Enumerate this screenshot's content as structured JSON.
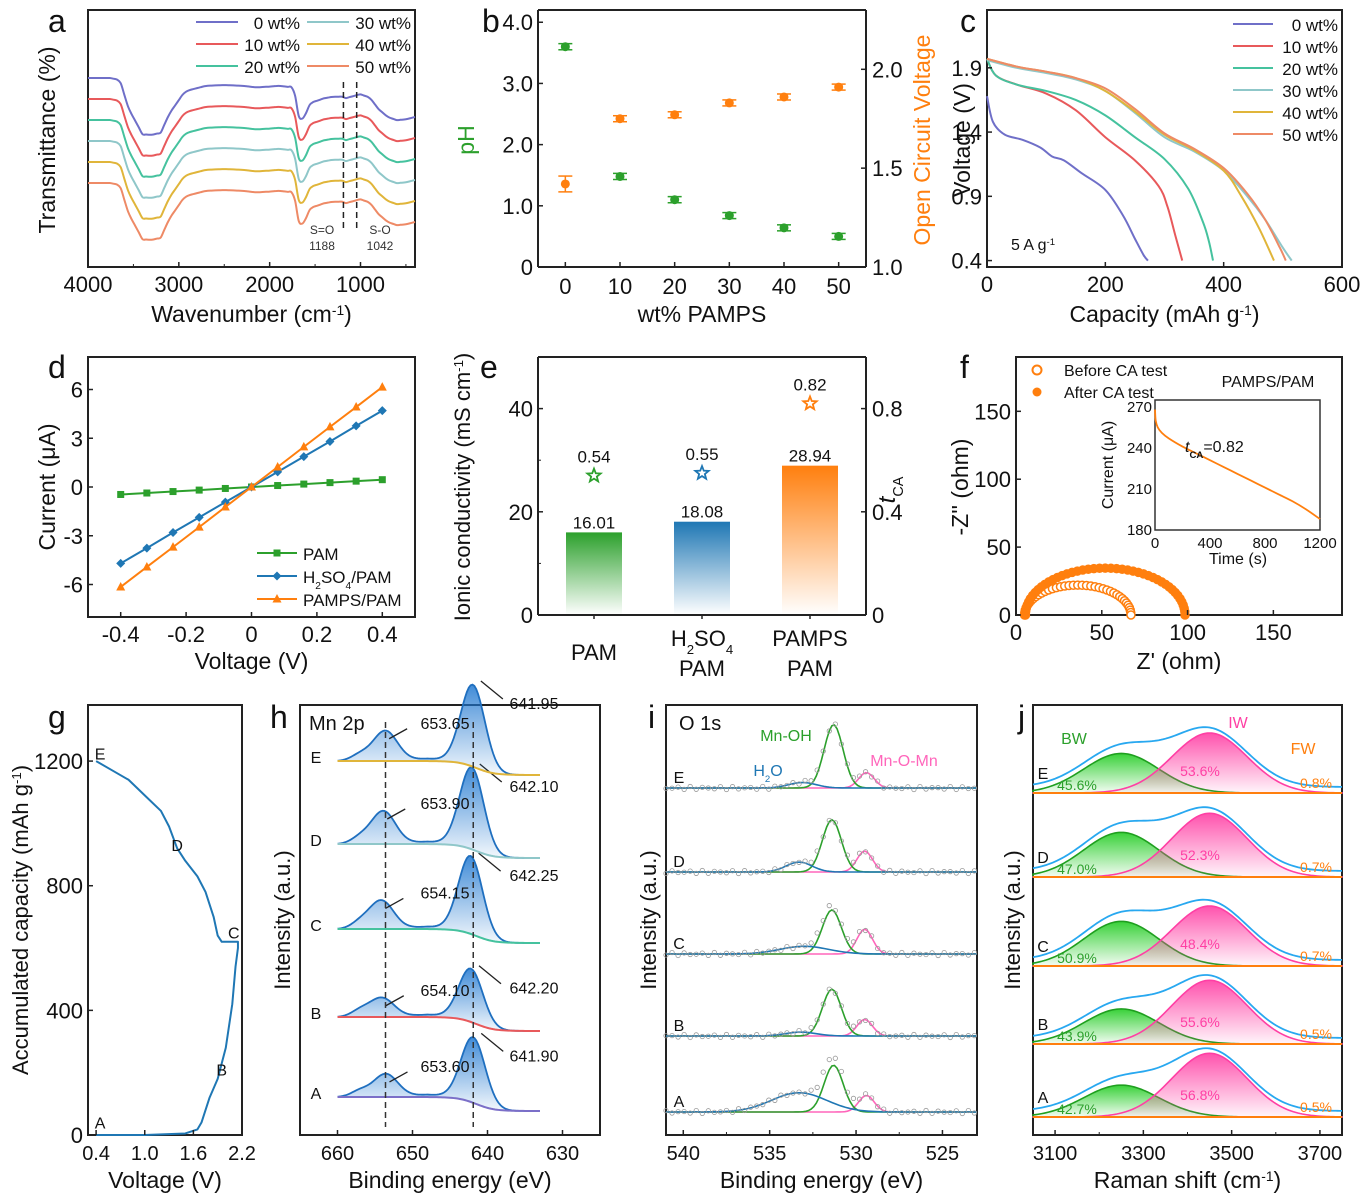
{
  "figure": {
    "panels": [
      "a",
      "b",
      "c",
      "d",
      "e",
      "f",
      "g",
      "h",
      "i",
      "j"
    ]
  },
  "chart_data": [
    {
      "id": "a",
      "type": "line",
      "title": "",
      "xlabel": "Wavenumber (cm-1)",
      "ylabel": "Transmittance (%)",
      "xlim": [
        4000,
        400
      ],
      "x_ticks": [
        4000,
        3000,
        2000,
        1000
      ],
      "y_ticks": [],
      "legend": {
        "position": "top-right",
        "columns": 2
      },
      "series": [
        {
          "name": "0 wt%",
          "color": "#6f6fc8",
          "offset": 0
        },
        {
          "name": "10 wt%",
          "color": "#e8595b",
          "offset": 1
        },
        {
          "name": "20 wt%",
          "color": "#45c29e",
          "offset": 2
        },
        {
          "name": "30 wt%",
          "color": "#8fc7c9",
          "offset": 3
        },
        {
          "name": "40 wt%",
          "color": "#e0b53a",
          "offset": 4
        },
        {
          "name": "50 wt%",
          "color": "#ee8a66",
          "offset": 5
        }
      ],
      "profile": {
        "x": [
          4000,
          3750,
          3650,
          3550,
          3400,
          3300,
          3200,
          3100,
          2950,
          2900,
          2700,
          2500,
          2300,
          2150,
          2000,
          1900,
          1750,
          1700,
          1670,
          1640,
          1600,
          1550,
          1450,
          1400,
          1300,
          1200,
          1188,
          1150,
          1100,
          1042,
          1000,
          900,
          800,
          700,
          600,
          500,
          400
        ],
        "y": [
          1.0,
          1.0,
          0.97,
          0.6,
          0.28,
          0.27,
          0.3,
          0.55,
          0.8,
          0.84,
          0.9,
          0.91,
          0.9,
          0.88,
          0.89,
          0.9,
          0.88,
          0.7,
          0.42,
          0.48,
          0.55,
          0.68,
          0.72,
          0.74,
          0.76,
          0.76,
          0.72,
          0.75,
          0.76,
          0.78,
          0.79,
          0.75,
          0.6,
          0.5,
          0.46,
          0.47,
          0.5
        ]
      },
      "annotations": [
        {
          "text": "S=O",
          "text2": "1188",
          "x": 1188
        },
        {
          "text": "S-O",
          "text2": "1042",
          "x": 1042
        }
      ]
    },
    {
      "id": "b",
      "type": "scatter",
      "xlabel": "wt% PAMPS",
      "ylabel": "pH",
      "y2label": "Open Circuit Voltage",
      "categories": [
        0,
        10,
        20,
        30,
        40,
        50
      ],
      "xlim": [
        -5,
        55
      ],
      "ylim": [
        0,
        4.2
      ],
      "y2lim": [
        1.0,
        2.3
      ],
      "y_ticks": [
        "0",
        "1.0",
        "2.0",
        "3.0",
        "4.0"
      ],
      "y2_ticks": [
        "1.0",
        "1.5",
        "2.0"
      ],
      "series": [
        {
          "name": "pH",
          "axis": "left",
          "color": "#2ca02c",
          "values": [
            3.6,
            1.48,
            1.1,
            0.84,
            0.64,
            0.5
          ],
          "errors": [
            0.05,
            0.05,
            0.05,
            0.04,
            0.04,
            0.04
          ]
        },
        {
          "name": "Open Circuit Voltage",
          "axis": "right",
          "color": "#ff7f0e",
          "values": [
            1.42,
            1.75,
            1.77,
            1.83,
            1.86,
            1.91
          ],
          "errors": [
            0.04,
            0.015,
            0.015,
            0.01,
            0.01,
            0.01
          ]
        }
      ]
    },
    {
      "id": "c",
      "type": "line",
      "xlabel": "Capacity (mAh g-1)",
      "ylabel": "Voltage (V)",
      "xlim": [
        0,
        600
      ],
      "ylim": [
        0.35,
        2.35
      ],
      "x_ticks": [
        0,
        200,
        400,
        600
      ],
      "y_ticks": [
        "0.4",
        "0.9",
        "1.4",
        "1.9"
      ],
      "annotation": "5 A g-1",
      "legend": {
        "position": "top-right"
      },
      "series": [
        {
          "name": "0 wt%",
          "color": "#6f6fc8",
          "x": [
            0,
            10,
            30,
            60,
            90,
            110,
            130,
            160,
            200,
            230,
            250,
            265,
            272
          ],
          "y": [
            1.68,
            1.48,
            1.38,
            1.34,
            1.28,
            1.21,
            1.18,
            1.08,
            0.95,
            0.75,
            0.57,
            0.44,
            0.4
          ]
        },
        {
          "name": "10 wt%",
          "color": "#e8595b",
          "x": [
            0,
            15,
            50,
            100,
            150,
            200,
            250,
            290,
            305,
            318,
            330
          ],
          "y": [
            1.97,
            1.84,
            1.77,
            1.7,
            1.57,
            1.36,
            1.18,
            0.98,
            0.82,
            0.6,
            0.4
          ]
        },
        {
          "name": "20 wt%",
          "color": "#45c29e",
          "x": [
            0,
            15,
            50,
            100,
            150,
            200,
            250,
            300,
            340,
            365,
            375,
            382
          ],
          "y": [
            1.97,
            1.84,
            1.77,
            1.72,
            1.65,
            1.53,
            1.36,
            1.19,
            0.96,
            0.7,
            0.55,
            0.4
          ]
        },
        {
          "name": "30 wt%",
          "color": "#8fc7c9",
          "x": [
            0,
            50,
            100,
            150,
            200,
            250,
            300,
            350,
            400,
            440,
            470,
            500,
            515
          ],
          "y": [
            1.96,
            1.9,
            1.86,
            1.81,
            1.72,
            1.55,
            1.36,
            1.25,
            1.1,
            0.9,
            0.72,
            0.5,
            0.4
          ]
        },
        {
          "name": "40 wt%",
          "color": "#e0b53a",
          "x": [
            0,
            50,
            100,
            150,
            200,
            250,
            300,
            350,
            400,
            430,
            460,
            485
          ],
          "y": [
            1.97,
            1.91,
            1.87,
            1.82,
            1.72,
            1.56,
            1.38,
            1.26,
            1.1,
            0.9,
            0.65,
            0.4
          ]
        },
        {
          "name": "50 wt%",
          "color": "#ee8a66",
          "x": [
            0,
            50,
            100,
            150,
            200,
            250,
            300,
            350,
            400,
            440,
            470,
            495,
            505
          ],
          "y": [
            1.97,
            1.91,
            1.87,
            1.82,
            1.74,
            1.58,
            1.39,
            1.27,
            1.12,
            0.92,
            0.72,
            0.5,
            0.4
          ]
        }
      ]
    },
    {
      "id": "d",
      "type": "line",
      "xlabel": "Voltage (V)",
      "ylabel": "Current (μA)",
      "xlim": [
        -0.5,
        0.5
      ],
      "ylim": [
        -8,
        8
      ],
      "x_ticks": [
        "-0.4",
        "-0.2",
        "0",
        "0.2",
        "0.4"
      ],
      "y_ticks": [
        "-6",
        "-3",
        "0",
        "3",
        "6"
      ],
      "legend": {
        "position": "bottom-right"
      },
      "x": [
        -0.4,
        -0.32,
        -0.24,
        -0.16,
        -0.08,
        0,
        0.08,
        0.16,
        0.24,
        0.32,
        0.4
      ],
      "series": [
        {
          "name": "PAM",
          "marker": "square",
          "color": "#2ca02c",
          "values": [
            -0.46,
            -0.37,
            -0.28,
            -0.19,
            -0.09,
            0,
            0.09,
            0.18,
            0.27,
            0.36,
            0.45
          ]
        },
        {
          "name": "H2SO4/PAM",
          "marker": "diamond",
          "color": "#1f77b4",
          "values": [
            -4.7,
            -3.76,
            -2.8,
            -1.87,
            -0.93,
            0,
            0.93,
            1.87,
            2.8,
            3.76,
            4.7
          ]
        },
        {
          "name": "PAMPS/PAM",
          "marker": "triangle",
          "color": "#ff7f0e",
          "values": [
            -6.15,
            -4.92,
            -3.7,
            -2.47,
            -1.23,
            0,
            1.23,
            2.47,
            3.7,
            4.92,
            6.15
          ]
        }
      ]
    },
    {
      "id": "e",
      "type": "bar",
      "xlabel": "",
      "ylabel": "Ionic conductivity (mS cm-1)",
      "y2label": "tCA",
      "categories": [
        [
          "PAM"
        ],
        [
          "H2SO4",
          "PAM"
        ],
        [
          "PAMPS",
          "PAM"
        ]
      ],
      "ylim": [
        0,
        50
      ],
      "y2lim": [
        0,
        1.0
      ],
      "y_ticks": [
        "0",
        "20",
        "40"
      ],
      "y2_ticks": [
        "0",
        "0.4",
        "0.8"
      ],
      "series": [
        {
          "name": "Ionic conductivity",
          "axis": "left",
          "values": [
            16.01,
            18.08,
            28.94
          ],
          "labels": [
            "16.01",
            "18.08",
            "28.94"
          ],
          "colors": [
            "#2ca02c",
            "#1f77b4",
            "#ff7f0e"
          ]
        },
        {
          "name": "tCA",
          "axis": "right",
          "marker": "star",
          "values": [
            0.54,
            0.55,
            0.82
          ],
          "labels": [
            "0.54",
            "0.55",
            "0.82"
          ],
          "colors": [
            "#2ca02c",
            "#1f77b4",
            "#ff7f0e"
          ]
        }
      ]
    },
    {
      "id": "f",
      "type": "scatter",
      "xlabel": "Z' (ohm)",
      "ylabel": "-Z'' (ohm)",
      "xlim": [
        0,
        190
      ],
      "ylim": [
        0,
        190
      ],
      "x_ticks": [
        0,
        50,
        100,
        150
      ],
      "y_ticks": [
        0,
        50,
        100,
        150
      ],
      "annotation": "PAMPS/PAM",
      "legend": {
        "position": "top-left"
      },
      "series": [
        {
          "name": "Before CA test",
          "marker": "open-circle",
          "color": "#ff7f0e",
          "center": 36,
          "radius": 31,
          "height": 22
        },
        {
          "name": "After CA test",
          "marker": "filled-circle",
          "color": "#ff7f0e",
          "center": 52,
          "radius": 46.5,
          "height": 34.5
        }
      ],
      "inset": {
        "type": "line",
        "xlabel": "Time (s)",
        "ylabel": "Current (μA)",
        "xlim": [
          0,
          1200
        ],
        "ylim": [
          180,
          275
        ],
        "x_ticks": [
          0,
          400,
          800,
          1200
        ],
        "y_ticks": [
          180,
          210,
          240,
          270
        ],
        "annotation": "tCA=0.82",
        "color": "#ff7f0e",
        "x": [
          0,
          5,
          20,
          50,
          100,
          200,
          300,
          400,
          500,
          600,
          700,
          800,
          900,
          1000,
          1100,
          1200
        ],
        "y": [
          268,
          260,
          255,
          251,
          247,
          241,
          236,
          231,
          226,
          221,
          216,
          211,
          206,
          201,
          195,
          188
        ]
      }
    },
    {
      "id": "g",
      "type": "line",
      "xlabel": "Voltage (V)",
      "ylabel": "Accumulated capacity (mAh g-1)",
      "xlim": [
        0.3,
        2.2
      ],
      "ylim": [
        0,
        1380
      ],
      "x_ticks": [
        "0.4",
        "1.0",
        "1.6",
        "2.2"
      ],
      "y_ticks": [
        "0",
        "400",
        "800",
        "1200"
      ],
      "color": "#1f77b4",
      "x": [
        0.4,
        1.0,
        1.5,
        1.65,
        1.7,
        1.8,
        1.9,
        2.0,
        2.08,
        2.12,
        2.15,
        2.15,
        2.15,
        1.95,
        1.9,
        1.85,
        1.75,
        1.65,
        1.5,
        1.4,
        1.3,
        1.2,
        1.0,
        0.8,
        0.6,
        0.4
      ],
      "y": [
        0,
        0,
        5,
        18,
        40,
        120,
        180,
        280,
        420,
        540,
        600,
        615,
        620,
        620,
        640,
        700,
        780,
        830,
        880,
        920,
        990,
        1040,
        1090,
        1140,
        1170,
        1200
      ],
      "point_labels": [
        {
          "label": "A",
          "x": 0.4,
          "y": 40
        },
        {
          "label": "B",
          "x": 1.9,
          "y": 210
        },
        {
          "label": "C",
          "x": 2.05,
          "y": 650
        },
        {
          "label": "D",
          "x": 1.35,
          "y": 930
        },
        {
          "label": "E",
          "x": 0.4,
          "y": 1225
        }
      ]
    },
    {
      "id": "h",
      "type": "line",
      "title": "Mn 2p",
      "xlabel": "Binding energy (eV)",
      "ylabel": "Intensity (a.u.)",
      "xlim": [
        665,
        625
      ],
      "x_ticks": [
        660,
        650,
        640,
        630
      ],
      "reference_lines": [
        653.6,
        641.9
      ],
      "spectra": [
        {
          "label": "A",
          "baseline_color": "#7b6fc8",
          "peak1": 653.6,
          "peak2": 641.9,
          "h1": 0.42,
          "h2": 0.8,
          "labels": [
            "653.60",
            "641.90"
          ]
        },
        {
          "label": "B",
          "baseline_color": "#e8595b",
          "peak1": 654.1,
          "peak2": 642.2,
          "h1": 0.35,
          "h2": 0.65,
          "labels": [
            "654.10",
            "642.20"
          ]
        },
        {
          "label": "C",
          "baseline_color": "#45c29e",
          "peak1": 654.15,
          "peak2": 642.25,
          "h1": 0.52,
          "h2": 0.95,
          "labels": [
            "654.15",
            "642.25"
          ]
        },
        {
          "label": "D",
          "baseline_color": "#8fc7c9",
          "peak1": 653.9,
          "peak2": 642.1,
          "h1": 0.6,
          "h2": 1.0,
          "labels": [
            "653.90",
            "642.10"
          ]
        },
        {
          "label": "E",
          "baseline_color": "#e0b53a",
          "peak1": 653.65,
          "peak2": 641.95,
          "h1": 0.55,
          "h2": 1.0,
          "labels": [
            "653.65",
            "641.95"
          ]
        }
      ]
    },
    {
      "id": "i",
      "type": "line",
      "title": "O 1s",
      "xlabel": "Binding energy (eV)",
      "ylabel": "Intensity (a.u.)",
      "xlim": [
        541,
        523
      ],
      "x_ticks": [
        540,
        535,
        530,
        525
      ],
      "component_labels": [
        {
          "text": "Mn-OH",
          "color": "#2ca02c"
        },
        {
          "text": "H2O",
          "color": "#1f77b4"
        },
        {
          "text": "Mn-O-Mn",
          "color": "#ff66bb"
        }
      ],
      "spectra": [
        {
          "label": "A",
          "h2o": [
            533.3,
            0.35,
            1.6
          ],
          "mnoh": [
            531.3,
            0.85,
            0.55
          ],
          "mnomn": [
            529.4,
            0.3,
            0.45
          ]
        },
        {
          "label": "B",
          "h2o": [
            533.2,
            0.07,
            0.9
          ],
          "mnoh": [
            531.4,
            0.85,
            0.55
          ],
          "mnomn": [
            529.5,
            0.3,
            0.45
          ]
        },
        {
          "label": "C",
          "h2o": [
            533.0,
            0.14,
            1.4
          ],
          "mnoh": [
            531.4,
            0.8,
            0.55
          ],
          "mnomn": [
            529.5,
            0.45,
            0.45
          ]
        },
        {
          "label": "D",
          "h2o": [
            533.3,
            0.18,
            0.75
          ],
          "mnoh": [
            531.4,
            0.95,
            0.55
          ],
          "mnomn": [
            529.5,
            0.38,
            0.45
          ]
        },
        {
          "label": "E",
          "h2o": [
            533.1,
            0.1,
            0.8
          ],
          "mnoh": [
            531.3,
            1.15,
            0.55
          ],
          "mnomn": [
            529.4,
            0.28,
            0.45
          ]
        }
      ]
    },
    {
      "id": "j",
      "type": "area",
      "xlabel": "Raman shift (cm-1)",
      "ylabel": "Intensity (a.u.)",
      "xlim": [
        3050,
        3750
      ],
      "x_ticks": [
        3100,
        3300,
        3500,
        3700
      ],
      "component_labels": [
        {
          "text": "BW",
          "color": "#2ca02c"
        },
        {
          "text": "IW",
          "color": "#ff3fa4"
        },
        {
          "text": "FW",
          "color": "#ff7f0e"
        }
      ],
      "spectra": [
        {
          "label": "A",
          "BW": "42.7%",
          "IW": "56.8%",
          "FW": "0.5%",
          "bw_h": 0.5,
          "iw_h": 0.85
        },
        {
          "label": "B",
          "BW": "43.9%",
          "IW": "55.6%",
          "FW": "0.5%",
          "bw_h": 0.55,
          "iw_h": 0.85
        },
        {
          "label": "C",
          "BW": "50.9%",
          "IW": "48.4%",
          "FW": "0.7%",
          "bw_h": 0.7,
          "iw_h": 0.8
        },
        {
          "label": "D",
          "BW": "47.0%",
          "IW": "52.3%",
          "FW": "0.7%",
          "bw_h": 0.7,
          "iw_h": 0.85
        },
        {
          "label": "E",
          "BW": "45.6%",
          "IW": "53.6%",
          "FW": "0.8%",
          "bw_h": 0.62,
          "iw_h": 0.8
        }
      ]
    }
  ]
}
